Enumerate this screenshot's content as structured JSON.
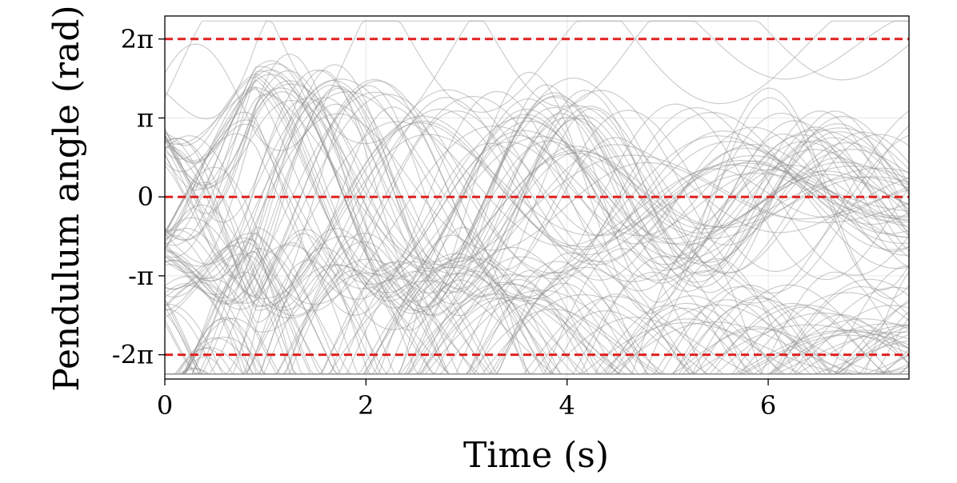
{
  "chart_data": {
    "type": "line",
    "title": "",
    "xlabel": "Time (s)",
    "ylabel": "Pendulum angle (rad)",
    "xlim": [
      0,
      7.4
    ],
    "ylim": [
      -7.25,
      7.2
    ],
    "grid": true,
    "xticks": [
      {
        "value": 0,
        "label": "0"
      },
      {
        "value": 2,
        "label": "2"
      },
      {
        "value": 4,
        "label": "4"
      },
      {
        "value": 6,
        "label": "6"
      }
    ],
    "yticks": [
      {
        "value": 6.2832,
        "label": "2π"
      },
      {
        "value": 3.1416,
        "label": "π"
      },
      {
        "value": 0,
        "label": "0"
      },
      {
        "value": -3.1416,
        "label": "-π"
      },
      {
        "value": -6.2832,
        "label": "-2π"
      }
    ],
    "reference_lines": [
      {
        "y": 6.2832,
        "style": "dashed",
        "color": "#e02020"
      },
      {
        "y": 0,
        "style": "dashed",
        "color": "#e02020"
      },
      {
        "y": -6.2832,
        "style": "dashed",
        "color": "#e02020"
      }
    ],
    "trajectory_style": {
      "color": "#909090",
      "opacity": 0.45
    },
    "trajectory_families": [
      {
        "settles_to": 0,
        "upper_turning_point": 5.5,
        "count": 40
      },
      {
        "settles_to": 0,
        "upper_turning_point": 6.1,
        "count": 10
      },
      {
        "settles_to": 6.2832,
        "lower_turning_point": 0.8,
        "count": 3
      },
      {
        "settles_to": -6.2832,
        "upper_turning_point": -0.7,
        "count": 38
      },
      {
        "settles_to": -6.2832,
        "upper_turning_point": -0.25,
        "count": 10
      },
      {
        "settles_to": 0,
        "lower_turning_point": -6.1,
        "count": 4
      }
    ]
  }
}
